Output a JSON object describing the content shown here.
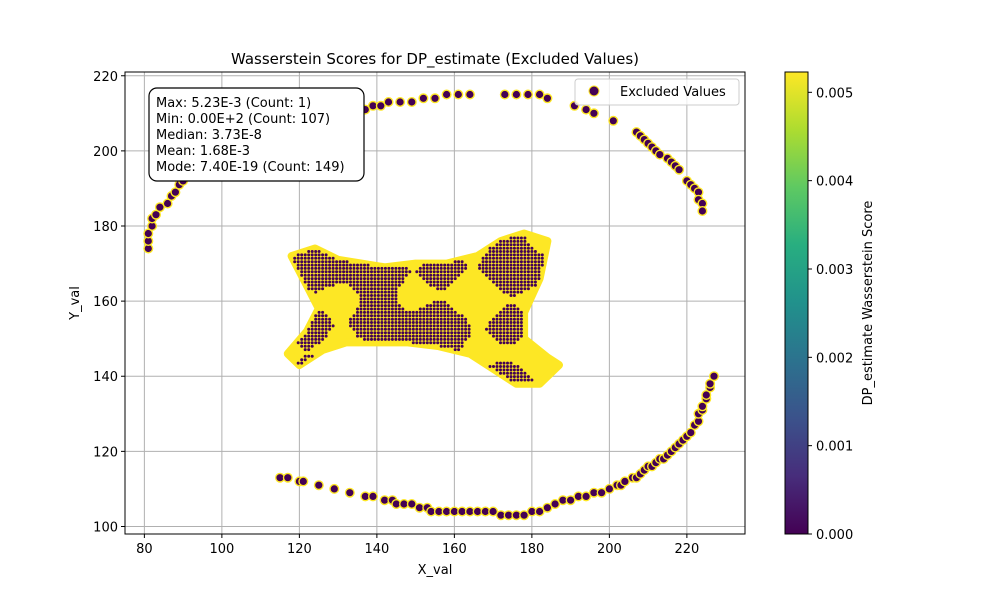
{
  "chart_data": {
    "type": "scatter",
    "title": "Wasserstein Scores for DP_estimate (Excluded Values)",
    "xlabel": "X_val",
    "ylabel": "Y_val",
    "xlim": [
      75,
      235
    ],
    "ylim": [
      98,
      221
    ],
    "xticks": [
      80,
      100,
      120,
      140,
      160,
      180,
      200,
      220
    ],
    "yticks": [
      100,
      120,
      140,
      160,
      180,
      200,
      220
    ],
    "grid": true,
    "legend": {
      "placement": "top-right",
      "entries": [
        "Excluded Values"
      ]
    },
    "stats_box": {
      "lines": [
        "Max: 5.23E-3 (Count: 1)",
        "Min: 0.00E+2 (Count: 107)",
        "Median: 3.73E-8",
        "Mean: 1.68E-3",
        "Mode: 7.40E-19 (Count: 149)"
      ]
    },
    "colorbar": {
      "label": "DP_estimate Wasserstein Score",
      "range": [
        0,
        0.00523
      ],
      "ticks": [
        "0.000",
        "0.001",
        "0.002",
        "0.003",
        "0.004",
        "0.005"
      ],
      "tick_values": [
        0,
        0.001,
        0.002,
        0.003,
        0.004,
        0.005
      ],
      "colormap": "viridis"
    },
    "colors": {
      "marker_face": "#440154",
      "marker_edge": "#fde725",
      "high": "#fde725",
      "grid": "#b0b0b0"
    },
    "outer_ring": {
      "top": [
        [
          81,
          174
        ],
        [
          81,
          176
        ],
        [
          81,
          178
        ],
        [
          82,
          180
        ],
        [
          82,
          182
        ],
        [
          83,
          183
        ],
        [
          84,
          185
        ],
        [
          86,
          186
        ],
        [
          87,
          188
        ],
        [
          88,
          189
        ],
        [
          89,
          191
        ],
        [
          90,
          192
        ],
        [
          137,
          211
        ],
        [
          139,
          212
        ],
        [
          141,
          212
        ],
        [
          143,
          213
        ],
        [
          146,
          213
        ],
        [
          149,
          213
        ],
        [
          152,
          214
        ],
        [
          155,
          214
        ],
        [
          158,
          215
        ],
        [
          161,
          215
        ],
        [
          164,
          215
        ],
        [
          173,
          215
        ],
        [
          176,
          215
        ],
        [
          179,
          215
        ],
        [
          182,
          215
        ],
        [
          184,
          214
        ],
        [
          191,
          212
        ],
        [
          194,
          211
        ],
        [
          196,
          210
        ],
        [
          201,
          208
        ],
        [
          207,
          205
        ],
        [
          208,
          204
        ],
        [
          209,
          203
        ],
        [
          210,
          202
        ],
        [
          211,
          201
        ],
        [
          212,
          200
        ],
        [
          213,
          199
        ],
        [
          215,
          198
        ],
        [
          216,
          197
        ],
        [
          217,
          196
        ],
        [
          218,
          195
        ],
        [
          220,
          192
        ],
        [
          221,
          191
        ],
        [
          222,
          190
        ],
        [
          223,
          189
        ],
        [
          223,
          187
        ],
        [
          224,
          186
        ],
        [
          224,
          184
        ]
      ],
      "bottom": [
        [
          115,
          113
        ],
        [
          117,
          113
        ],
        [
          120,
          112
        ],
        [
          121,
          112
        ],
        [
          125,
          111
        ],
        [
          129,
          110
        ],
        [
          133,
          109
        ],
        [
          137,
          108
        ],
        [
          139,
          108
        ],
        [
          142,
          107
        ],
        [
          144,
          107
        ],
        [
          145,
          106
        ],
        [
          147,
          106
        ],
        [
          149,
          106
        ],
        [
          151,
          105
        ],
        [
          153,
          105
        ],
        [
          154,
          104
        ],
        [
          156,
          104
        ],
        [
          158,
          104
        ],
        [
          160,
          104
        ],
        [
          162,
          104
        ],
        [
          164,
          104
        ],
        [
          166,
          104
        ],
        [
          168,
          104
        ],
        [
          170,
          104
        ],
        [
          172,
          103
        ],
        [
          174,
          103
        ],
        [
          176,
          103
        ],
        [
          178,
          103
        ],
        [
          180,
          104
        ],
        [
          182,
          104
        ],
        [
          184,
          105
        ],
        [
          186,
          106
        ],
        [
          188,
          107
        ],
        [
          190,
          107
        ],
        [
          192,
          108
        ],
        [
          194,
          108
        ],
        [
          196,
          109
        ],
        [
          198,
          109
        ],
        [
          200,
          110
        ],
        [
          202,
          111
        ],
        [
          203,
          111
        ],
        [
          204,
          112
        ],
        [
          206,
          113
        ],
        [
          207,
          113
        ],
        [
          208,
          114
        ],
        [
          209,
          115
        ],
        [
          210,
          116
        ],
        [
          211,
          116
        ],
        [
          212,
          117
        ],
        [
          213,
          118
        ],
        [
          214,
          118
        ],
        [
          215,
          119
        ],
        [
          216,
          120
        ],
        [
          217,
          121
        ],
        [
          218,
          122
        ],
        [
          219,
          123
        ],
        [
          220,
          124
        ],
        [
          221,
          125
        ],
        [
          222,
          127
        ],
        [
          223,
          128
        ],
        [
          223,
          130
        ],
        [
          224,
          131
        ],
        [
          224,
          132
        ],
        [
          225,
          134
        ],
        [
          225,
          135
        ],
        [
          226,
          137
        ],
        [
          226,
          138
        ],
        [
          227,
          140
        ]
      ]
    },
    "central_blob": {
      "outline": [
        [
          118,
          172
        ],
        [
          124,
          174
        ],
        [
          130,
          171
        ],
        [
          136,
          170
        ],
        [
          142,
          169
        ],
        [
          150,
          170
        ],
        [
          158,
          170
        ],
        [
          166,
          172
        ],
        [
          172,
          176
        ],
        [
          178,
          178
        ],
        [
          184,
          176
        ],
        [
          182,
          166
        ],
        [
          178,
          157
        ],
        [
          178,
          150
        ],
        [
          184,
          145
        ],
        [
          187,
          143
        ],
        [
          182,
          138
        ],
        [
          176,
          138
        ],
        [
          170,
          142
        ],
        [
          164,
          146
        ],
        [
          156,
          148
        ],
        [
          148,
          149
        ],
        [
          140,
          149
        ],
        [
          132,
          149
        ],
        [
          126,
          147
        ],
        [
          120,
          143
        ],
        [
          117,
          146
        ],
        [
          122,
          152
        ],
        [
          125,
          158
        ],
        [
          121,
          166
        ]
      ]
    }
  }
}
